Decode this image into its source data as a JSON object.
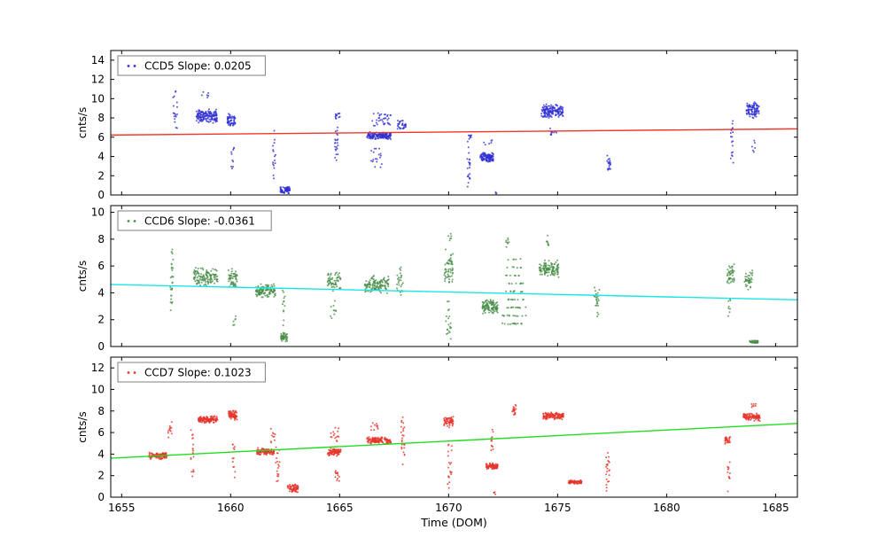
{
  "figure": {
    "xlabel": "Time (DOM)",
    "x_ticks": [
      1655,
      1660,
      1665,
      1670,
      1675,
      1680,
      1685
    ],
    "x_range": [
      1654.5,
      1686.0
    ],
    "background": "#ffffff",
    "frame_color": "#000000"
  },
  "chart_data": [
    {
      "type": "scatter",
      "name": "CCD5",
      "legend": "CCD5 Slope: 0.0205",
      "slope": 0.0205,
      "ylabel": "cnts/s",
      "ylim": [
        0,
        15
      ],
      "y_ticks": [
        0,
        2,
        4,
        6,
        8,
        10,
        12,
        14
      ],
      "point_color": "#2f2fd3",
      "line_color": "#f2362b",
      "trend": {
        "slope": 0.0205,
        "y_at_xmin": 6.22
      },
      "cluster_format": [
        "x_center",
        "x_spread",
        "y_center",
        "y_spread",
        "n_points"
      ],
      "clusters": [
        [
          1657.45,
          0.1,
          8.8,
          2.2,
          18
        ],
        [
          1658.9,
          0.48,
          8.2,
          0.8,
          150
        ],
        [
          1658.85,
          0.2,
          10.4,
          0.6,
          6
        ],
        [
          1660.05,
          0.2,
          7.8,
          0.7,
          55
        ],
        [
          1660.1,
          0.07,
          4.5,
          2.3,
          10
        ],
        [
          1662.0,
          0.06,
          4.0,
          2.8,
          16
        ],
        [
          1662.5,
          0.22,
          0.5,
          0.4,
          70
        ],
        [
          1664.85,
          0.07,
          5.5,
          2.6,
          22
        ],
        [
          1664.9,
          0.12,
          8.2,
          0.4,
          12
        ],
        [
          1666.8,
          0.55,
          6.15,
          0.4,
          150
        ],
        [
          1666.9,
          0.45,
          7.8,
          0.9,
          35
        ],
        [
          1666.7,
          0.3,
          4.0,
          1.3,
          18
        ],
        [
          1667.85,
          0.2,
          7.2,
          0.7,
          30
        ],
        [
          1670.9,
          0.08,
          3.3,
          3.0,
          22
        ],
        [
          1670.95,
          0.1,
          6.0,
          0.3,
          8
        ],
        [
          1671.75,
          0.3,
          3.9,
          0.55,
          110
        ],
        [
          1671.8,
          0.2,
          5.5,
          0.5,
          6
        ],
        [
          1672.2,
          0.05,
          0.3,
          0.25,
          3
        ],
        [
          1674.75,
          0.5,
          8.7,
          0.8,
          150
        ],
        [
          1674.8,
          0.15,
          6.6,
          0.6,
          10
        ],
        [
          1677.35,
          0.08,
          3.3,
          1.2,
          20
        ],
        [
          1683.0,
          0.07,
          5.5,
          3.2,
          18
        ],
        [
          1683.95,
          0.3,
          8.8,
          0.9,
          90
        ],
        [
          1684.0,
          0.1,
          4.8,
          1.0,
          6
        ]
      ]
    },
    {
      "type": "scatter",
      "name": "CCD6",
      "legend": "CCD6 Slope: -0.0361",
      "slope": -0.0361,
      "ylabel": "cnts/s",
      "ylim": [
        0,
        10.5
      ],
      "y_ticks": [
        0,
        2,
        4,
        6,
        8,
        10
      ],
      "point_color": "#4a8f4a",
      "line_color": "#19e6e6",
      "trend": {
        "slope": -0.0361,
        "y_at_xmin": 4.62
      },
      "cluster_format": [
        "x_center",
        "x_spread",
        "y_center",
        "y_spread",
        "n_points"
      ],
      "clusters": [
        [
          1657.3,
          0.07,
          5.0,
          4.2,
          30
        ],
        [
          1658.85,
          0.55,
          5.2,
          0.75,
          130
        ],
        [
          1660.1,
          0.2,
          5.0,
          0.8,
          55
        ],
        [
          1660.2,
          0.1,
          2.0,
          0.6,
          6
        ],
        [
          1661.6,
          0.45,
          4.15,
          0.55,
          120
        ],
        [
          1662.45,
          0.07,
          3.0,
          2.0,
          12
        ],
        [
          1662.45,
          0.15,
          0.7,
          0.35,
          55
        ],
        [
          1664.75,
          0.3,
          4.8,
          0.9,
          60
        ],
        [
          1664.7,
          0.15,
          2.8,
          0.8,
          10
        ],
        [
          1666.7,
          0.55,
          4.6,
          0.7,
          120
        ],
        [
          1667.8,
          0.2,
          5.0,
          1.3,
          25
        ],
        [
          1670.0,
          0.2,
          5.8,
          1.6,
          55
        ],
        [
          1670.0,
          0.12,
          2.0,
          1.8,
          20
        ],
        [
          1670.05,
          0.08,
          8.3,
          0.5,
          6
        ],
        [
          1671.9,
          0.35,
          3.0,
          0.6,
          110
        ],
        [
          1673.0,
          0.6,
          1.7,
          0.05,
          14
        ],
        [
          1673.0,
          0.55,
          2.3,
          0.05,
          12
        ],
        [
          1673.05,
          0.5,
          2.9,
          0.05,
          11
        ],
        [
          1673.0,
          0.5,
          3.5,
          0.05,
          10
        ],
        [
          1673.0,
          0.45,
          4.1,
          0.05,
          9
        ],
        [
          1673.0,
          0.45,
          4.7,
          0.05,
          8
        ],
        [
          1672.95,
          0.4,
          5.3,
          0.05,
          7
        ],
        [
          1673.0,
          0.35,
          5.9,
          0.05,
          6
        ],
        [
          1673.0,
          0.3,
          6.5,
          0.05,
          5
        ],
        [
          1672.7,
          0.07,
          7.8,
          0.9,
          8
        ],
        [
          1674.6,
          0.45,
          5.8,
          0.7,
          120
        ],
        [
          1674.5,
          0.1,
          7.8,
          0.7,
          8
        ],
        [
          1676.8,
          0.12,
          3.5,
          1.3,
          25
        ],
        [
          1682.95,
          0.18,
          5.4,
          0.8,
          45
        ],
        [
          1682.9,
          0.07,
          3.0,
          1.0,
          8
        ],
        [
          1683.75,
          0.2,
          5.0,
          0.8,
          40
        ],
        [
          1684.0,
          0.2,
          0.35,
          0.12,
          50
        ]
      ]
    },
    {
      "type": "scatter",
      "name": "CCD7",
      "legend": "CCD7 Slope: 0.1023",
      "slope": 0.1023,
      "ylabel": "cnts/s",
      "ylim": [
        0,
        13
      ],
      "y_ticks": [
        0,
        2,
        4,
        6,
        8,
        10,
        12
      ],
      "point_color": "#e6342a",
      "line_color": "#21dd21",
      "trend": {
        "slope": 0.1023,
        "y_at_xmin": 3.62
      },
      "cluster_format": [
        "x_center",
        "x_spread",
        "y_center",
        "y_spread",
        "n_points"
      ],
      "clusters": [
        [
          1656.65,
          0.42,
          3.85,
          0.35,
          120
        ],
        [
          1657.2,
          0.1,
          6.2,
          0.9,
          12
        ],
        [
          1658.25,
          0.07,
          4.0,
          2.9,
          18
        ],
        [
          1658.95,
          0.45,
          7.2,
          0.35,
          130
        ],
        [
          1660.1,
          0.2,
          7.6,
          0.45,
          70
        ],
        [
          1660.15,
          0.07,
          3.5,
          2.5,
          12
        ],
        [
          1661.6,
          0.4,
          4.25,
          0.35,
          110
        ],
        [
          1661.95,
          0.1,
          5.7,
          0.8,
          10
        ],
        [
          1662.15,
          0.1,
          3.0,
          2.6,
          18
        ],
        [
          1662.85,
          0.25,
          0.85,
          0.45,
          70
        ],
        [
          1664.75,
          0.3,
          4.2,
          0.4,
          90
        ],
        [
          1664.8,
          0.2,
          5.8,
          0.8,
          15
        ],
        [
          1664.9,
          0.1,
          2.0,
          1.0,
          12
        ],
        [
          1666.8,
          0.55,
          5.25,
          0.35,
          130
        ],
        [
          1666.6,
          0.2,
          6.5,
          0.6,
          10
        ],
        [
          1667.9,
          0.08,
          5.0,
          3.0,
          25
        ],
        [
          1670.0,
          0.22,
          7.0,
          0.55,
          60
        ],
        [
          1670.05,
          0.1,
          3.0,
          2.8,
          20
        ],
        [
          1672.0,
          0.28,
          2.85,
          0.3,
          100
        ],
        [
          1672.0,
          0.07,
          5.0,
          1.5,
          12
        ],
        [
          1672.1,
          0.05,
          0.4,
          0.3,
          4
        ],
        [
          1673.0,
          0.1,
          8.1,
          0.7,
          22
        ],
        [
          1674.8,
          0.48,
          7.55,
          0.35,
          130
        ],
        [
          1675.8,
          0.3,
          1.4,
          0.2,
          80
        ],
        [
          1677.3,
          0.08,
          2.5,
          2.0,
          22
        ],
        [
          1682.8,
          0.12,
          5.3,
          0.4,
          30
        ],
        [
          1682.85,
          0.07,
          2.2,
          1.8,
          12
        ],
        [
          1683.9,
          0.38,
          7.45,
          0.4,
          110
        ],
        [
          1684.0,
          0.12,
          8.5,
          0.3,
          7
        ]
      ]
    }
  ]
}
